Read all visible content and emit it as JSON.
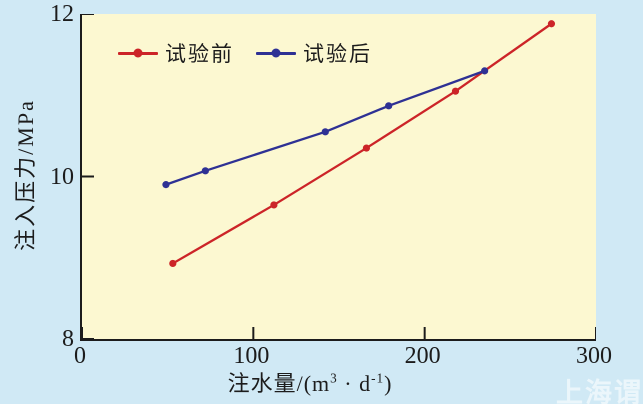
{
  "colors": {
    "page_background": "#d0e9f5",
    "plot_background": "#fcf8d1",
    "axis": "#1c1c1c",
    "series_before": "#cc2428",
    "series_after": "#2e3194",
    "watermark": "rgba(255,255,255,0.58)"
  },
  "watermark_text": "上海谓载",
  "chart_data": {
    "type": "line",
    "title": "",
    "xlabel": "注水量/(m³·d⁻¹)",
    "xlabel_parts": {
      "pre": "注水量/(m",
      "sup_a": "3",
      "mid": " · d",
      "sup_b": "-1",
      "post": ")"
    },
    "ylabel": "注入压力/MPa",
    "xlim": [
      0,
      300
    ],
    "ylim": [
      8,
      12
    ],
    "x_ticks": [
      0,
      100,
      200,
      300
    ],
    "y_ticks": [
      8,
      10,
      12
    ],
    "grid": false,
    "legend_position": "top-left-inside",
    "marker": "circle",
    "series": [
      {
        "name": "试验前",
        "color": "#cc2428",
        "x": [
          53,
          112,
          166,
          218,
          274
        ],
        "y": [
          8.93,
          9.65,
          10.35,
          11.05,
          11.88
        ]
      },
      {
        "name": "试验后",
        "color": "#2e3194",
        "x": [
          49,
          72,
          142,
          179,
          235
        ],
        "y": [
          9.9,
          10.07,
          10.55,
          10.87,
          11.3
        ]
      }
    ]
  }
}
